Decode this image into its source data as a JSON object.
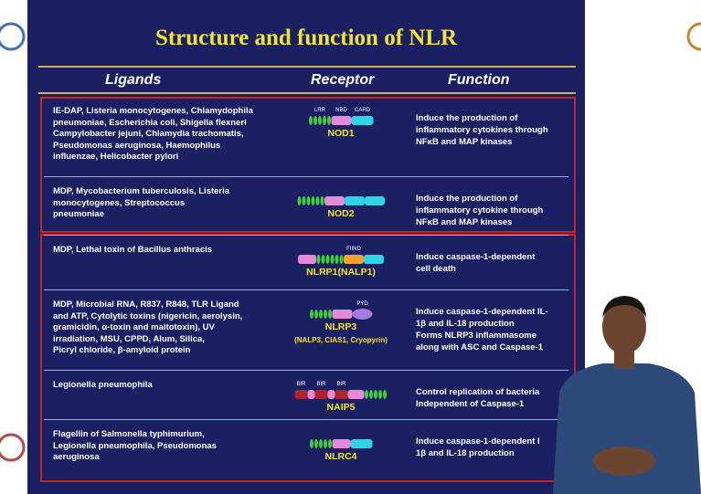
{
  "header": {
    "title": "Structure and function of NLR"
  },
  "table": {
    "headers": [
      "Ligands",
      "Receptor",
      "Function"
    ],
    "rows": [
      {
        "ligands": [
          "IE-DAP, Listeria monocytogenes, Chlamydophila",
          "pneumoniae, Escherichia coli, Shigella flexneri",
          "Campylobacter jejuni, Chlamydia trachomatis,",
          "Pseudomonas aeruginosa, Haemophilus",
          "influenzae, Helicobacter pylori"
        ],
        "domains": [
          "LRR",
          "NBD",
          "CARD"
        ],
        "receptor": "NOD1",
        "function": [
          "Induce the production of",
          "inflammatory cytokines through",
          "NFκB and MAP kinases"
        ]
      },
      {
        "ligands": [
          "MDP, Mycobacterium tuberculosis, Listeria",
          "monocytogenes, Streptococcus",
          "pneumoniae"
        ],
        "receptor": "NOD2",
        "function": [
          "Induce the production of",
          "inflammatory cytokine through",
          "NFκB and MAP kinases"
        ]
      },
      {
        "ligands": [
          "MDP, Lethal toxin of Bacillus anthracis"
        ],
        "domains": [
          "FIIND"
        ],
        "receptor": "NLRP1(NALP1)",
        "function": [
          "Induce caspase-1-dependent",
          "cell death"
        ]
      },
      {
        "ligands": [
          "MDP, Microbial RNA, R837, R848, TLR Ligand",
          "and ATP, Cytolytic toxins (nigericin, aerolysin,",
          "gramicidin, α-toxin and maitotoxin), UV",
          "irradiation, MSU, CPPD, Alum, Silica,",
          "Picryl chloride, β-amyloid protein"
        ],
        "domains": [
          "PYD"
        ],
        "receptor": "NLRP3",
        "receptor_note": "(NALP3, CIAS1, Cryopyrin)",
        "function": [
          "Induce caspase-1-dependent IL-",
          "1β and IL-18 production",
          "Forms NLRP3 inflammasome",
          "along with ASC and Caspase-1"
        ]
      },
      {
        "ligands": [
          "Legionella pneumophila"
        ],
        "domains": [
          "BIR",
          "BIR",
          "BIR"
        ],
        "receptor": "NAIP5",
        "function": [
          "Control replication of bacteria",
          "Independent of Caspase-1"
        ]
      },
      {
        "ligands": [
          "Flagellin of Salmonella typhimurium,",
          "Legionella pneumophila, Pseudomonas",
          "aeruginosa"
        ],
        "receptor": "NLRC4",
        "function": [
          "Induce caspase-1-dependent I",
          "1β and IL-18 production"
        ]
      }
    ]
  }
}
